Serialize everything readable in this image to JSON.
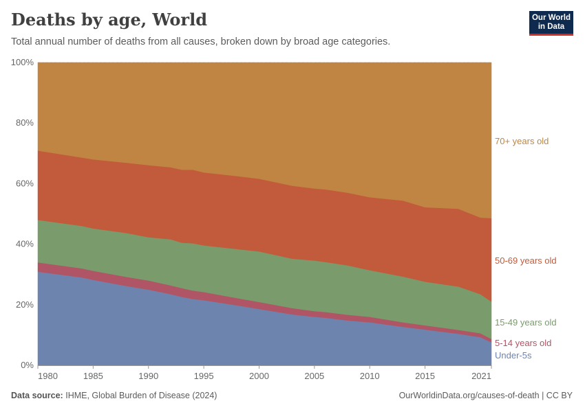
{
  "header": {
    "title": "Deaths by age, World",
    "subtitle": "Total annual number of deaths from all causes, broken down by broad age categories.",
    "logo_line1": "Our World",
    "logo_line2": "in Data"
  },
  "footer": {
    "source_label": "Data source:",
    "source_text": "IHME, Global Burden of Disease (2024)",
    "right_text": "OurWorldinData.org/causes-of-death | CC BY"
  },
  "chart_data": {
    "type": "area",
    "stacked": true,
    "relative": true,
    "title": "Deaths by age, World",
    "x": [
      1980,
      1984,
      1985,
      1988,
      1990,
      1992,
      1993,
      1994,
      1995,
      1998,
      2000,
      2003,
      2005,
      2006,
      2008,
      2010,
      2013,
      2015,
      2018,
      2020,
      2021
    ],
    "xticks": [
      1980,
      1985,
      1990,
      1995,
      2000,
      2005,
      2010,
      2015,
      2021
    ],
    "yticks": [
      0,
      20,
      40,
      60,
      80,
      100
    ],
    "ytick_labels": [
      "0%",
      "20%",
      "40%",
      "60%",
      "80%",
      "100%"
    ],
    "ylim": [
      0,
      100
    ],
    "xlim": [
      1980,
      2021
    ],
    "grid": "horizontal-dashed",
    "series": [
      {
        "name": "Under-5s",
        "color": "#6d84ae",
        "values": [
          30.9,
          29.0,
          28.2,
          26.2,
          25.0,
          23.5,
          22.6,
          21.9,
          21.5,
          19.8,
          18.6,
          16.8,
          16.0,
          15.7,
          14.8,
          14.2,
          12.7,
          11.8,
          10.4,
          9.3,
          7.6
        ]
      },
      {
        "name": "5-14 years old",
        "color": "#b05565",
        "values": [
          3.1,
          3.0,
          3.0,
          3.0,
          3.0,
          2.9,
          2.9,
          2.8,
          2.7,
          2.4,
          2.3,
          2.1,
          1.9,
          1.9,
          1.9,
          1.8,
          1.5,
          1.4,
          1.3,
          1.3,
          1.1
        ]
      },
      {
        "name": "15-49 years old",
        "color": "#7a9b6c",
        "values": [
          14.0,
          14.0,
          14.0,
          14.5,
          14.3,
          15.2,
          15.0,
          15.6,
          15.4,
          16.2,
          16.7,
          16.3,
          16.7,
          16.5,
          16.3,
          15.4,
          15.1,
          14.4,
          14.3,
          12.9,
          12.3
        ]
      },
      {
        "name": "50-69 years old",
        "color": "#c25b3b",
        "values": [
          22.9,
          22.6,
          22.8,
          23.2,
          23.8,
          23.8,
          24.1,
          24.3,
          24.1,
          24.1,
          24.0,
          24.1,
          23.8,
          24.0,
          24.0,
          24.1,
          25.1,
          24.6,
          25.7,
          25.3,
          27.6
        ]
      },
      {
        "name": "70+ years old",
        "color": "#c08543",
        "values": [
          29.1,
          31.4,
          32.0,
          33.1,
          33.9,
          34.6,
          35.4,
          35.4,
          36.3,
          37.5,
          38.4,
          40.7,
          41.6,
          41.9,
          43.0,
          44.5,
          45.6,
          47.8,
          48.3,
          51.2,
          51.4
        ]
      }
    ]
  }
}
